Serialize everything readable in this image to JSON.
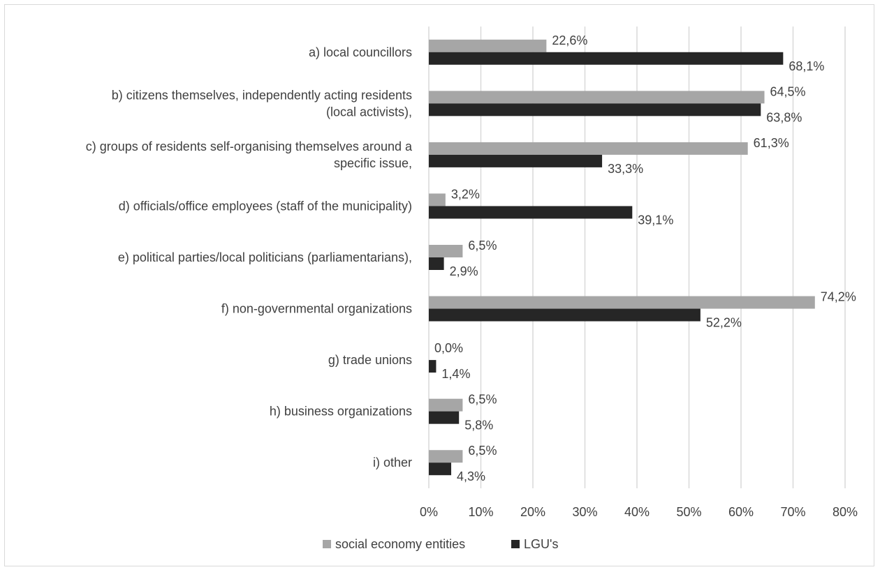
{
  "chart_data": {
    "type": "bar",
    "orientation": "horizontal",
    "categories": [
      [
        "a) local councillors"
      ],
      [
        "b) citizens themselves, independently acting residents",
        "(local activists),"
      ],
      [
        "c) groups of residents self-organising themselves around a",
        "specific issue,"
      ],
      [
        "d) officials/office employees (staff of the municipality)"
      ],
      [
        "e) political parties/local politicians (parliamentarians),"
      ],
      [
        "f) non-governmental organizations"
      ],
      [
        "g) trade unions"
      ],
      [
        "h) business organizations"
      ],
      [
        "i) other"
      ]
    ],
    "series": [
      {
        "name": "social economy entities",
        "color": "#a6a6a6",
        "values": [
          22.6,
          64.5,
          61.3,
          3.2,
          6.5,
          74.2,
          0.0,
          6.5,
          6.5
        ],
        "labels": [
          "22,6%",
          "64,5%",
          "61,3%",
          "3,2%",
          "6,5%",
          "74,2%",
          "0,0%",
          "6,5%",
          "6,5%"
        ]
      },
      {
        "name": "LGU's",
        "color": "#262626",
        "values": [
          68.1,
          63.8,
          33.3,
          39.1,
          2.9,
          52.2,
          1.4,
          5.8,
          4.3
        ],
        "labels": [
          "68,1%",
          "63,8%",
          "33,3%",
          "39,1%",
          "2,9%",
          "52,2%",
          "1,4%",
          "5,8%",
          "4,3%"
        ]
      }
    ],
    "xlim": [
      0,
      80
    ],
    "xticks": [
      0,
      10,
      20,
      30,
      40,
      50,
      60,
      70,
      80
    ],
    "xtick_labels": [
      "0%",
      "10%",
      "20%",
      "30%",
      "40%",
      "50%",
      "60%",
      "70%",
      "80%"
    ],
    "grid": true,
    "grid_color": "#d9d9d9",
    "legend_position": "bottom",
    "title": "",
    "xlabel": "",
    "ylabel": ""
  }
}
